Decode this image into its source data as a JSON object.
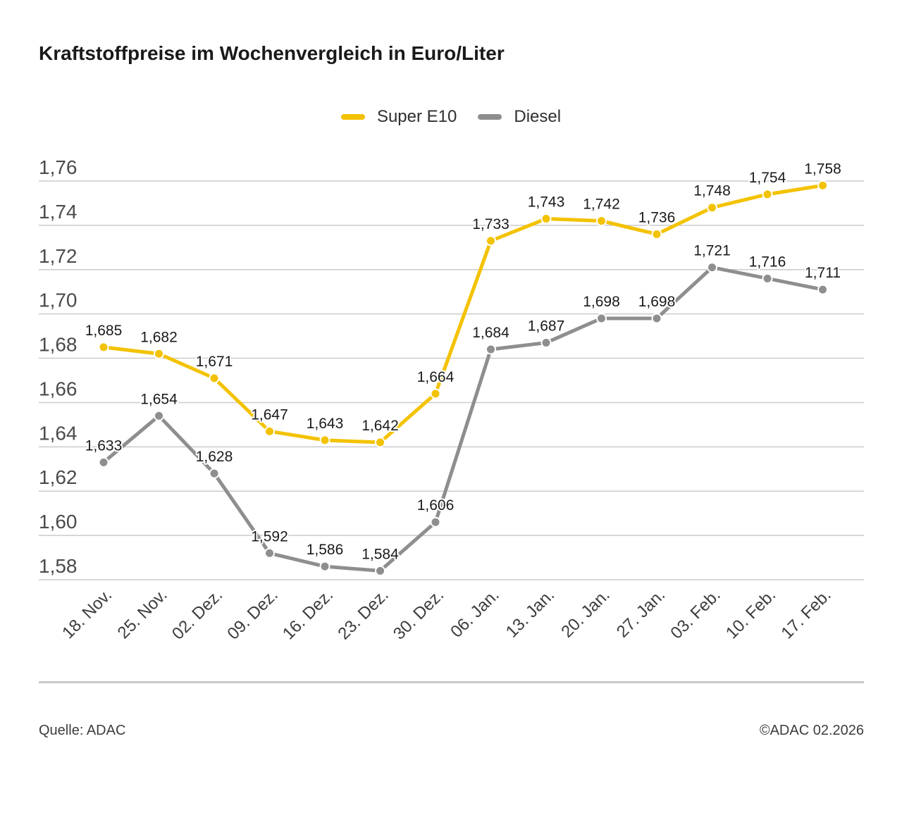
{
  "title": "Kraftstoffpreise im Wochenvergleich in Euro/Liter",
  "footer": {
    "source": "Quelle: ADAC",
    "copyright": "©ADAC 02.2026"
  },
  "colors": {
    "super_e10": "#F3C200",
    "diesel": "#8E8E8E",
    "gridline": "#cbcbcb",
    "text_dark": "#1a1a1a",
    "tick_text": "#4b4b4b"
  },
  "chart_data": {
    "type": "line",
    "title": "Kraftstoffpreise im Wochenvergleich in Euro/Liter",
    "xlabel": "",
    "ylabel": "Euro/Liter",
    "categories": [
      "18. Nov.",
      "25. Nov.",
      "02. Dez.",
      "09. Dez.",
      "16. Dez.",
      "23. Dez.",
      "30. Dez.",
      "06. Jan.",
      "13. Jan.",
      "20. Jan.",
      "27. Jan.",
      "03. Feb.",
      "10. Feb.",
      "17. Feb."
    ],
    "series": [
      {
        "name": "Super E10",
        "color": "#F3C200",
        "values": [
          1.685,
          1.682,
          1.671,
          1.647,
          1.643,
          1.642,
          1.664,
          1.733,
          1.743,
          1.742,
          1.736,
          1.748,
          1.754,
          1.758
        ],
        "value_labels": [
          "1,685",
          "1,682",
          "1,671",
          "1,647",
          "1,643",
          "1,642",
          "1,664",
          "1,733",
          "1,743",
          "1,742",
          "1,736",
          "1,748",
          "1,754",
          "1,758"
        ]
      },
      {
        "name": "Diesel",
        "color": "#8E8E8E",
        "values": [
          1.633,
          1.654,
          1.628,
          1.592,
          1.586,
          1.584,
          1.606,
          1.684,
          1.687,
          1.698,
          1.698,
          1.721,
          1.716,
          1.711
        ],
        "value_labels": [
          "1,633",
          "1,654",
          "1,628",
          "1,592",
          "1,586",
          "1,584",
          "1,606",
          "1,684",
          "1,687",
          "1,698",
          "1,698",
          "1,721",
          "1,716",
          "1,711"
        ]
      }
    ],
    "ylim": [
      1.58,
      1.76
    ],
    "ytick_step": 0.02,
    "ytick_labels": [
      "1,58",
      "1,60",
      "1,62",
      "1,64",
      "1,66",
      "1,68",
      "1,70",
      "1,72",
      "1,74",
      "1,76"
    ],
    "grid": true,
    "legend_position": "top-center",
    "marker": "circle"
  }
}
